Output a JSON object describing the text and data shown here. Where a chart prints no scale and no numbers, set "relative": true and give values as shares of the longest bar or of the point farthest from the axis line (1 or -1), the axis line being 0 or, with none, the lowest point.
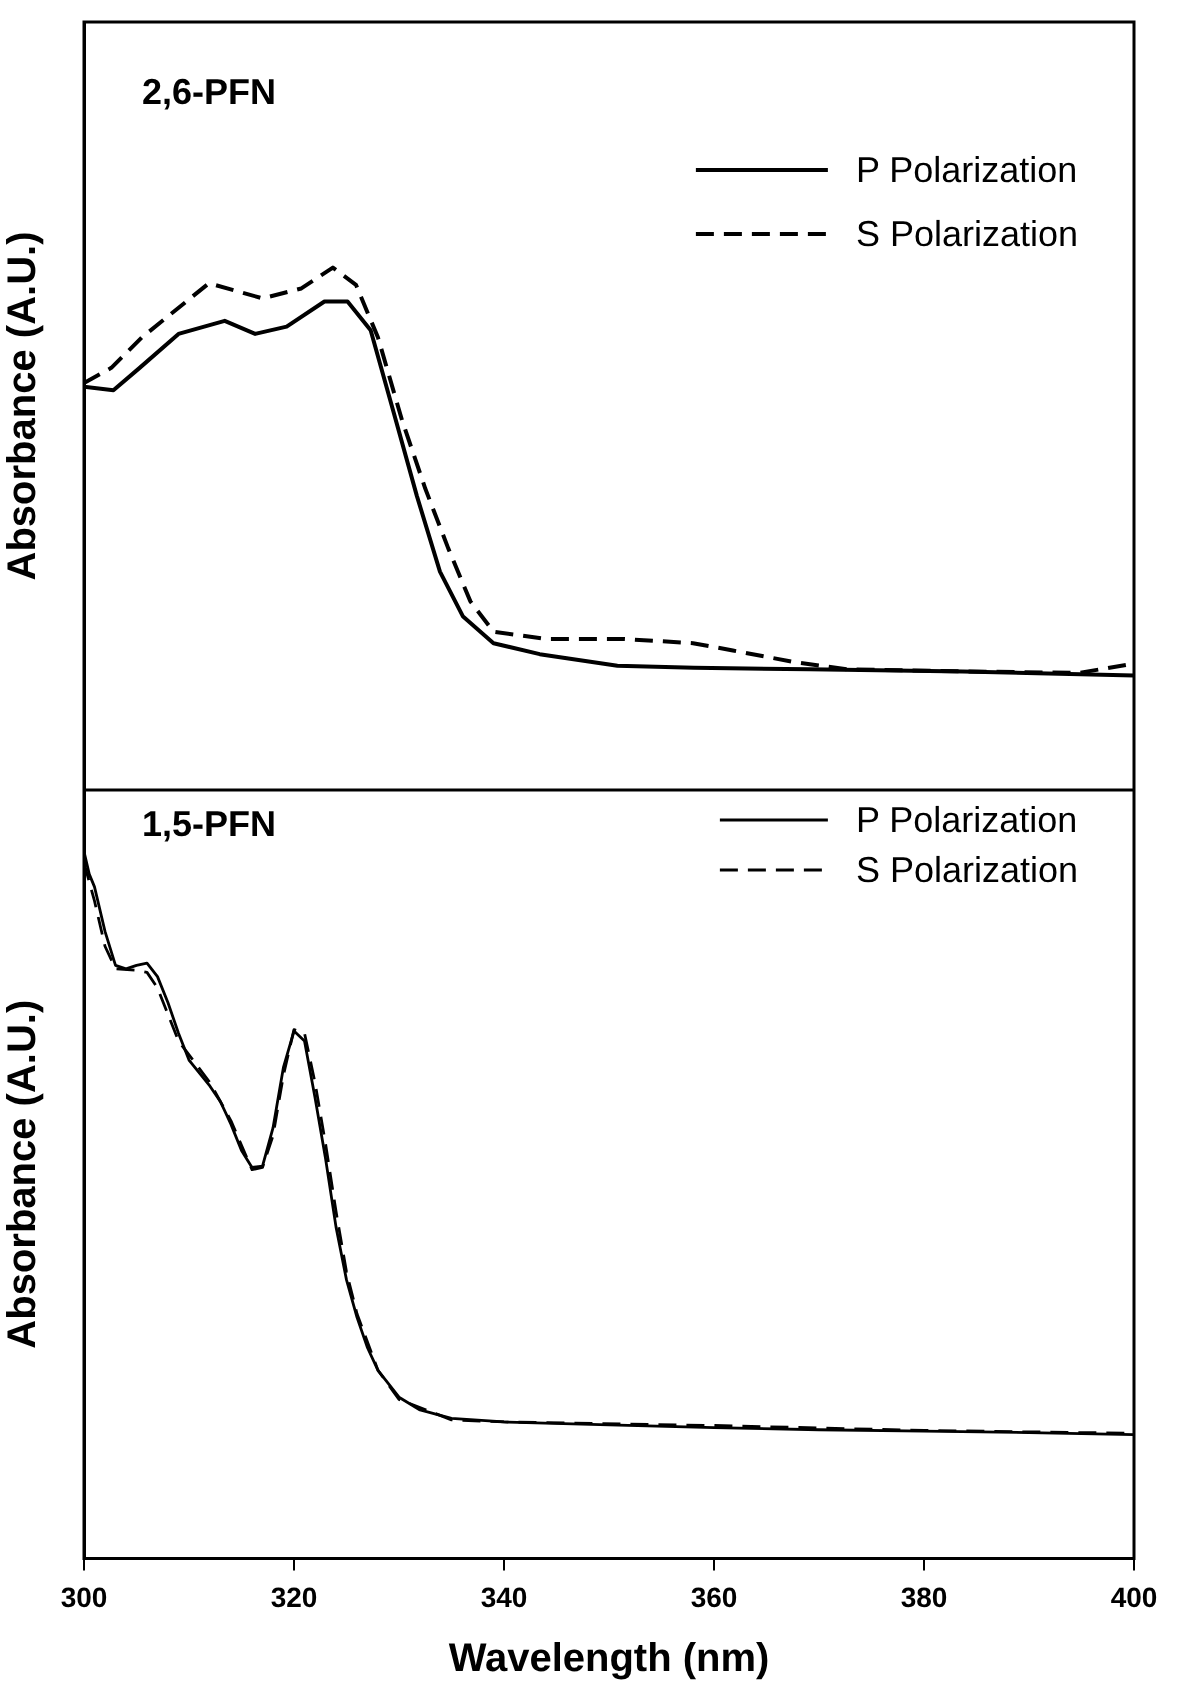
{
  "chart_data": [
    {
      "type": "line",
      "title": "2,6-PFN",
      "ylabel": "Absorbance (A.U.)",
      "relative": true,
      "xlim": [
        300,
        400
      ],
      "xticks": [
        300,
        320,
        340,
        360,
        380,
        400
      ],
      "tick_labels": false,
      "legend": "top right",
      "grid": false,
      "marker": "none",
      "series": [
        {
          "name": "P Polarization",
          "color": "#000000",
          "line_style": "solid",
          "x": [
            300,
            302.8,
            305.3,
            309,
            313.4,
            316.3,
            319.3,
            322.9,
            325.1,
            327.3,
            329.5,
            331.7,
            333.9,
            336.1,
            339,
            343.4,
            350.8,
            358.1,
            369.1,
            383.7,
            400
          ],
          "values": [
            0.772,
            0.765,
            0.808,
            0.873,
            0.898,
            0.873,
            0.887,
            0.935,
            0.935,
            0.88,
            0.722,
            0.563,
            0.418,
            0.332,
            0.281,
            0.26,
            0.238,
            0.234,
            0.231,
            0.227,
            0.219
          ]
        },
        {
          "name": "S Polarization",
          "color": "#000000",
          "line_style": "dashed",
          "x": [
            300,
            302.6,
            305.5,
            311.9,
            317,
            320.7,
            323.7,
            325.9,
            328,
            330.3,
            332.5,
            334.7,
            336.8,
            339,
            344,
            351.5,
            358,
            361.8,
            367.6,
            372.7,
            383.7,
            394.7,
            400
          ],
          "values": [
            0.779,
            0.808,
            0.866,
            0.97,
            0.941,
            0.96,
            1,
            0.967,
            0.866,
            0.707,
            0.577,
            0.462,
            0.361,
            0.303,
            0.289,
            0.289,
            0.281,
            0.267,
            0.245,
            0.231,
            0.227,
            0.224,
            0.242
          ]
        }
      ]
    },
    {
      "type": "line",
      "title": "1,5-PFN",
      "xlabel": "Wavelength (nm)",
      "ylabel": "Absorbance (A.U.)",
      "relative": true,
      "xlim": [
        300,
        400
      ],
      "xticks": [
        300,
        320,
        340,
        360,
        380,
        400
      ],
      "tick_labels": "x",
      "legend": "top right",
      "grid": false,
      "marker": "none",
      "series": [
        {
          "name": "P Polarization",
          "color": "#000000",
          "line_style": "solid",
          "x": [
            300,
            300.5,
            301,
            302,
            303,
            304,
            305,
            306,
            307,
            308,
            309,
            310,
            312,
            313,
            314,
            315,
            316,
            317,
            318,
            319,
            320,
            321,
            322,
            323,
            324,
            325,
            326,
            327,
            328,
            330,
            332,
            335,
            340,
            350,
            360,
            370,
            380,
            390,
            400
          ],
          "values": [
            1,
            0.968,
            0.95,
            0.887,
            0.839,
            0.834,
            0.839,
            0.842,
            0.823,
            0.786,
            0.743,
            0.705,
            0.668,
            0.646,
            0.614,
            0.577,
            0.553,
            0.555,
            0.609,
            0.695,
            0.746,
            0.732,
            0.652,
            0.566,
            0.469,
            0.394,
            0.341,
            0.298,
            0.266,
            0.228,
            0.21,
            0.198,
            0.193,
            0.189,
            0.185,
            0.182,
            0.18,
            0.178,
            0.175
          ]
        },
        {
          "name": "S Polarization",
          "color": "#000000",
          "line_style": "dashed",
          "x": [
            300,
            301,
            302,
            303,
            305,
            306,
            307,
            309,
            312,
            314,
            316,
            317,
            318,
            319,
            320,
            321,
            322,
            323,
            324,
            325,
            326,
            328,
            330,
            335,
            340,
            360,
            380,
            400
          ],
          "values": [
            0.984,
            0.93,
            0.866,
            0.834,
            0.832,
            0.829,
            0.807,
            0.732,
            0.673,
            0.619,
            0.55,
            0.553,
            0.598,
            0.684,
            0.748,
            0.743,
            0.673,
            0.587,
            0.491,
            0.405,
            0.346,
            0.266,
            0.225,
            0.196,
            0.193,
            0.188,
            0.181,
            0.177
          ]
        }
      ]
    }
  ]
}
